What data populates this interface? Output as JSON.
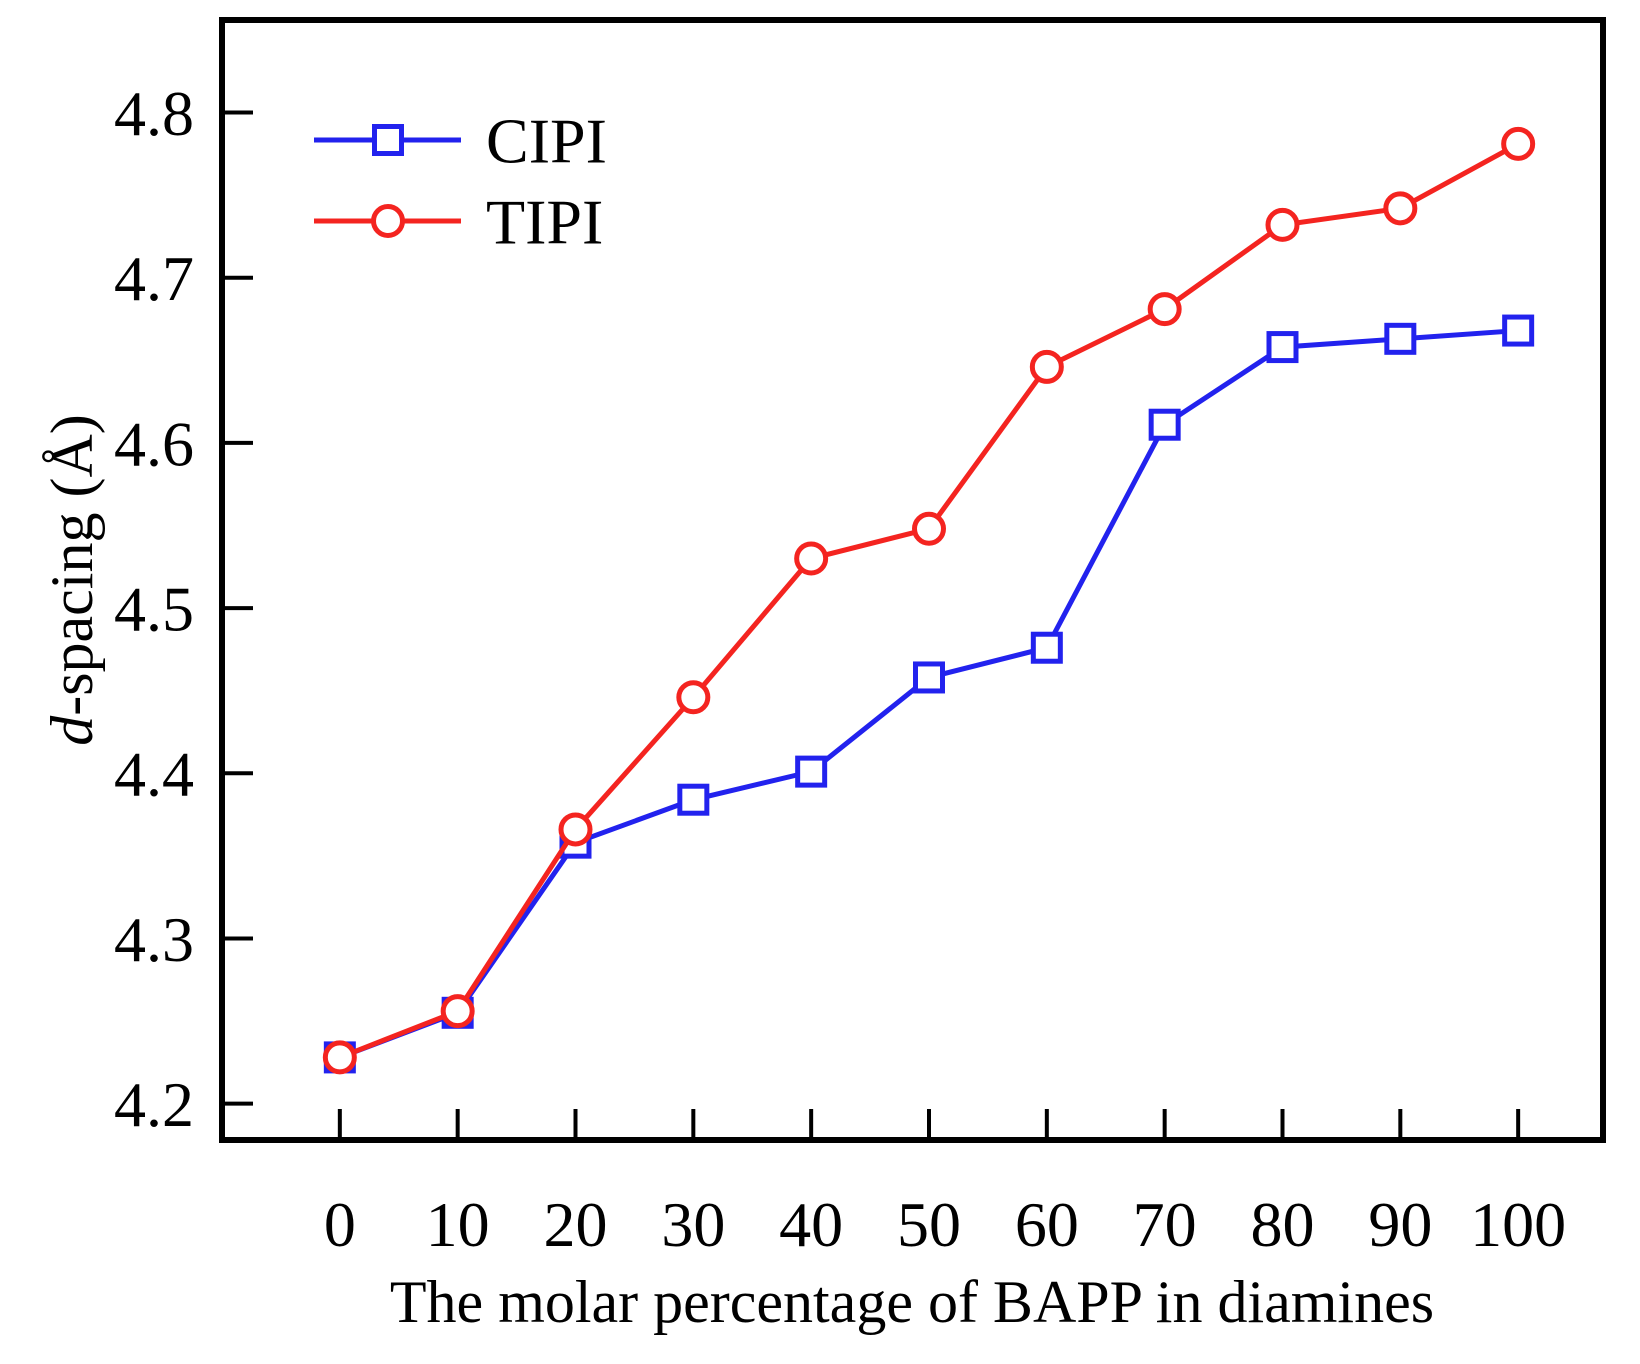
{
  "chart_data": {
    "type": "line",
    "x": [
      0,
      10,
      20,
      30,
      40,
      50,
      60,
      70,
      80,
      90,
      100
    ],
    "series": [
      {
        "name": "CIPI",
        "color": "#2222ee",
        "marker": "square",
        "values": [
          4.228,
          4.255,
          4.358,
          4.384,
          4.401,
          4.458,
          4.476,
          4.611,
          4.658,
          4.663,
          4.668
        ]
      },
      {
        "name": "TIPI",
        "color": "#f42420",
        "marker": "circle",
        "values": [
          4.228,
          4.256,
          4.366,
          4.446,
          4.53,
          4.548,
          4.646,
          4.681,
          4.732,
          4.742,
          4.781
        ]
      }
    ],
    "xlabel": "The molar percentage of BAPP in diamines",
    "ylabel_full": "d-spacing (Å)",
    "ylabel_prefix_italic": "d",
    "ylabel_rest": "-spacing (Å)",
    "xticks": [
      0,
      10,
      20,
      30,
      40,
      50,
      60,
      70,
      80,
      90,
      100
    ],
    "yticks": [
      4.2,
      4.3,
      4.4,
      4.5,
      4.6,
      4.7,
      4.8
    ],
    "xlim": [
      -10,
      107.2
    ],
    "ylim": [
      4.178,
      4.856
    ],
    "grid": false,
    "legend_position": "top-left",
    "axis_color": "#000000",
    "marker_fill": "#ffffff"
  }
}
